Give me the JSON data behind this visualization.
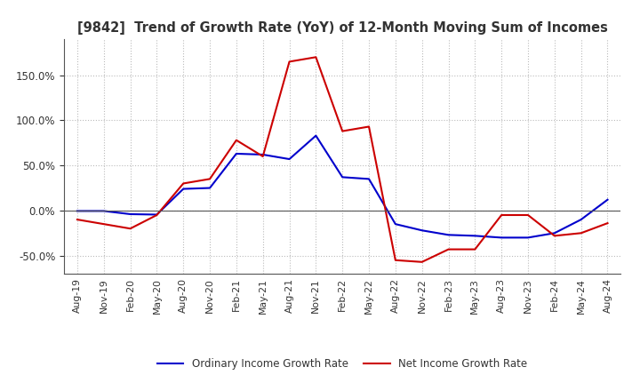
{
  "title": "[9842]  Trend of Growth Rate (YoY) of 12-Month Moving Sum of Incomes",
  "x_labels": [
    "Aug-19",
    "Nov-19",
    "Feb-20",
    "May-20",
    "Aug-20",
    "Nov-20",
    "Feb-21",
    "May-21",
    "Aug-21",
    "Nov-21",
    "Feb-22",
    "May-22",
    "Aug-22",
    "Nov-22",
    "Feb-23",
    "May-23",
    "Aug-23",
    "Nov-23",
    "Feb-24",
    "May-24",
    "Aug-24"
  ],
  "ordinary_income_pct": [
    -0.5,
    -0.5,
    -4.0,
    -4.5,
    24.0,
    25.0,
    63.0,
    62.0,
    57.0,
    83.0,
    37.0,
    35.0,
    -15.0,
    -22.0,
    -27.0,
    -28.0,
    -30.0,
    -30.0,
    -25.0,
    -10.0,
    12.0
  ],
  "net_income_pct": [
    -10.0,
    -15.0,
    -20.0,
    -5.0,
    30.0,
    35.0,
    78.0,
    60.0,
    165.0,
    170.0,
    88.0,
    93.0,
    -55.0,
    -57.0,
    -43.0,
    -43.0,
    -5.0,
    -5.0,
    -28.0,
    -25.0,
    -14.0
  ],
  "ordinary_color": "#0000cc",
  "net_color": "#cc0000",
  "background_color": "#ffffff",
  "grid_color": "#bbbbbb",
  "title_color": "#333333",
  "yticks": [
    -50,
    0,
    50,
    100,
    150
  ],
  "ylim_min": -70,
  "ylim_max": 190,
  "legend_ordinary": "Ordinary Income Growth Rate",
  "legend_net": "Net Income Growth Rate"
}
